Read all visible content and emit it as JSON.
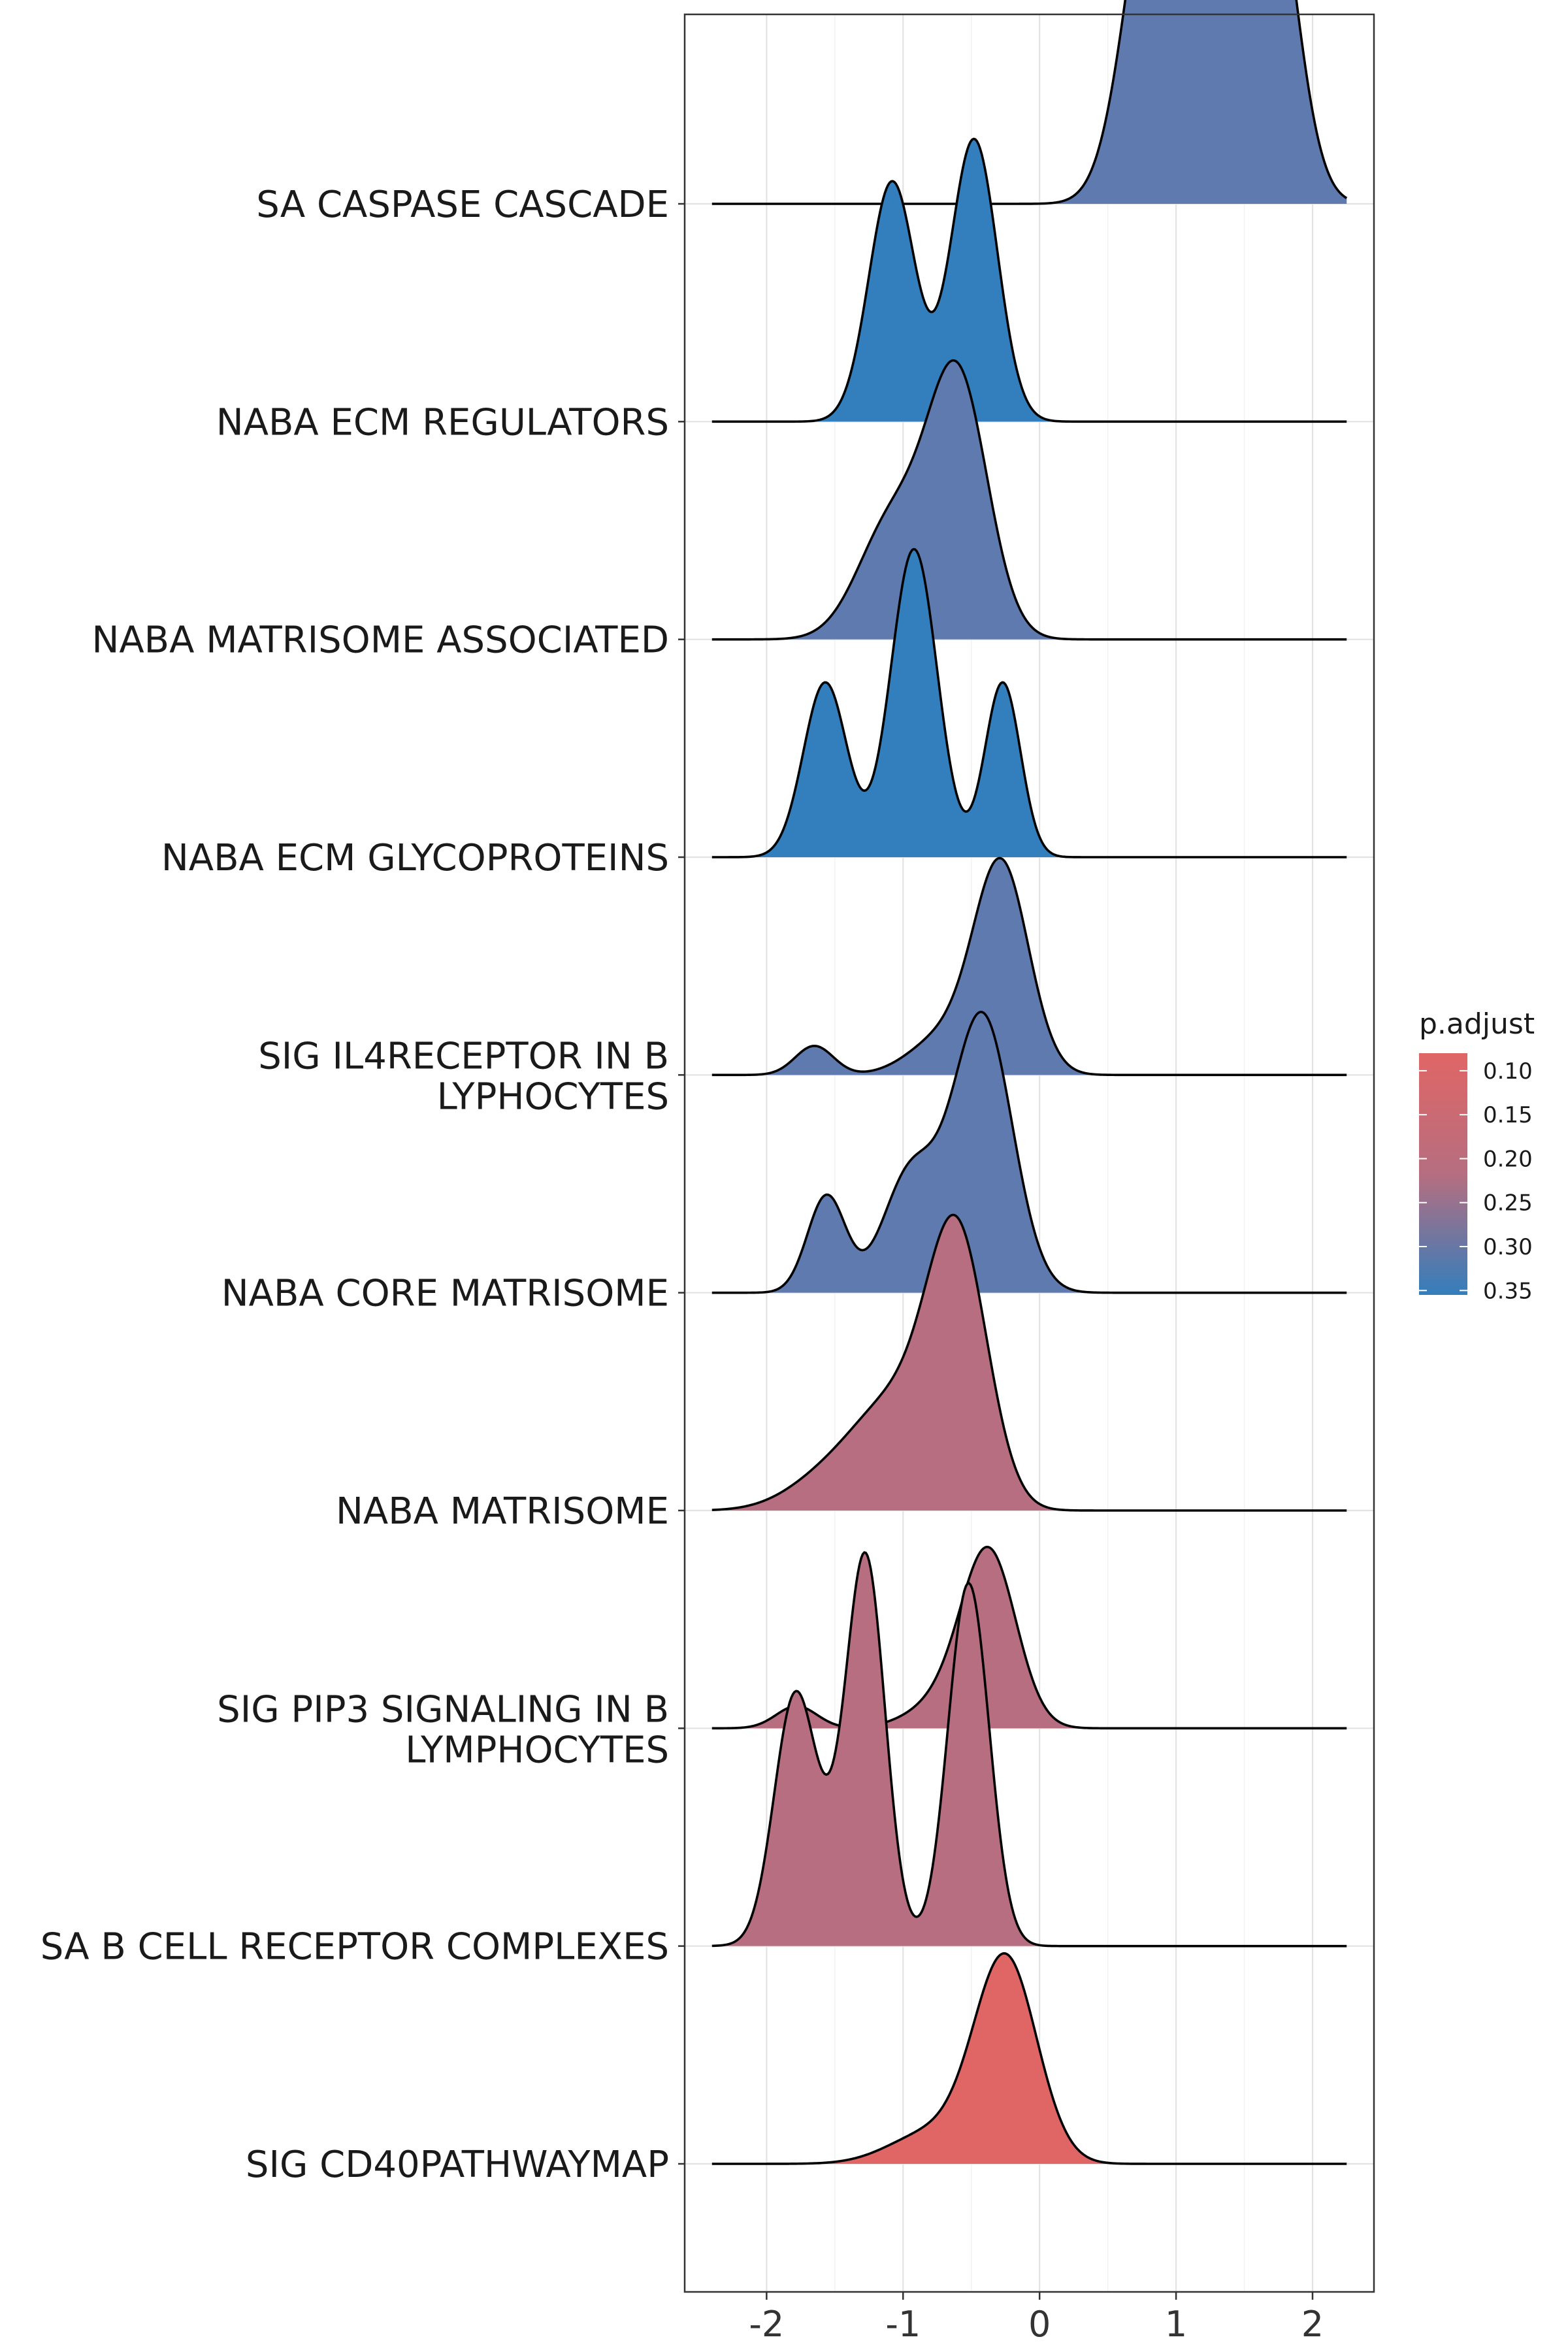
{
  "chart_data": {
    "type": "ridgeline",
    "title": "",
    "xlabel": "",
    "ylabel": "",
    "xlim": [
      -2.6,
      2.45
    ],
    "xticks": [
      -2,
      -1,
      0,
      1,
      2
    ],
    "xtick_labels": [
      "-2",
      "-1",
      "0",
      "1",
      "2"
    ],
    "grid": true,
    "ridge_scale_rows": 1.4,
    "categories": [
      "SIG CD40PATHWAYMAP",
      "SA B CELL RECEPTOR COMPLEXES",
      "SIG PIP3 SIGNALING IN B LYMPHOCYTES",
      "NABA MATRISOME",
      "NABA CORE MATRISOME",
      "SIG IL4RECEPTOR IN B LYPHOCYTES",
      "NABA ECM GLYCOPROTEINS",
      "NABA MATRISOME ASSOCIATED",
      "NABA ECM REGULATORS",
      "SA CASPASE CASCADE"
    ],
    "series": [
      {
        "name": "SIG CD40PATHWAYMAP",
        "label_lines": [
          "SIG CD40PATHWAYMAP"
        ],
        "p_adjust": 0.085,
        "color": "#e06666",
        "line_range": [
          -2.4,
          2.25
        ],
        "components": [
          {
            "mu": -0.25,
            "sd": 0.23,
            "w": 1.0
          },
          {
            "mu": -0.8,
            "sd": 0.3,
            "w": 0.15
          }
        ],
        "peak": 1.49
      },
      {
        "name": "SA B CELL RECEPTOR COMPLEXES",
        "label_lines": [
          "SA B CELL RECEPTOR COMPLEXES"
        ],
        "p_adjust": 0.19,
        "color": "#b66e80",
        "line_range": [
          -2.4,
          2.25
        ],
        "components": [
          {
            "mu": -1.8,
            "sd": 0.15,
            "w": 0.6
          },
          {
            "mu": -1.27,
            "sd": 0.14,
            "w": 0.95
          },
          {
            "mu": -0.52,
            "sd": 0.15,
            "w": 1.0
          },
          {
            "mu": -1.5,
            "sd": 0.25,
            "w": 0.2
          }
        ],
        "peak": 0.84
      },
      {
        "name": "SIG PIP3 SIGNALING IN B LYMPHOCYTES",
        "label_lines": [
          "SIG PIP3 SIGNALING IN B",
          "LYMPHOCYTES"
        ],
        "p_adjust": 0.19,
        "color": "#b66e80",
        "line_range": [
          -2.4,
          2.25
        ],
        "components": [
          {
            "mu": -0.37,
            "sd": 0.2,
            "w": 1.0
          },
          {
            "mu": -1.78,
            "sd": 0.15,
            "w": 0.13
          },
          {
            "mu": -0.7,
            "sd": 0.25,
            "w": 0.15
          }
        ],
        "peak": 1.79
      },
      {
        "name": "NABA MATRISOME",
        "label_lines": [
          "NABA MATRISOME"
        ],
        "p_adjust": 0.19,
        "color": "#b66e80",
        "line_range": [
          -2.4,
          2.25
        ],
        "components": [
          {
            "mu": -0.6,
            "sd": 0.22,
            "w": 1.0
          },
          {
            "mu": -1.05,
            "sd": 0.3,
            "w": 0.38
          },
          {
            "mu": -1.55,
            "sd": 0.3,
            "w": 0.12
          }
        ],
        "peak": 1.17
      },
      {
        "name": "NABA CORE MATRISOME",
        "label_lines": [
          "NABA CORE MATRISOME"
        ],
        "p_adjust": 0.31,
        "color": "#5f7aaf",
        "line_range": [
          -2.4,
          2.25
        ],
        "components": [
          {
            "mu": -0.42,
            "sd": 0.22,
            "w": 1.0
          },
          {
            "mu": -1.56,
            "sd": 0.14,
            "w": 0.35
          },
          {
            "mu": -0.95,
            "sd": 0.2,
            "w": 0.42
          }
        ],
        "peak": 1.1
      },
      {
        "name": "SIG IL4RECEPTOR IN B LYPHOCYTES",
        "label_lines": [
          "SIG IL4RECEPTOR IN B",
          "LYPHOCYTES"
        ],
        "p_adjust": 0.31,
        "color": "#5f7aaf",
        "line_range": [
          -2.4,
          2.25
        ],
        "components": [
          {
            "mu": -0.28,
            "sd": 0.2,
            "w": 1.0
          },
          {
            "mu": -1.65,
            "sd": 0.14,
            "w": 0.14
          },
          {
            "mu": -0.7,
            "sd": 0.25,
            "w": 0.18
          }
        ],
        "peak": 1.47
      },
      {
        "name": "NABA ECM GLYCOPROTEINS",
        "label_lines": [
          "NABA ECM GLYCOPROTEINS"
        ],
        "p_adjust": 0.35,
        "color": "#337ebc",
        "line_range": [
          -2.4,
          2.25
        ],
        "components": [
          {
            "mu": -1.57,
            "sd": 0.16,
            "w": 0.55
          },
          {
            "mu": -0.92,
            "sd": 0.17,
            "w": 0.97
          },
          {
            "mu": -0.27,
            "sd": 0.13,
            "w": 0.55
          }
        ],
        "peak": 0.96
      },
      {
        "name": "NABA MATRISOME ASSOCIATED",
        "label_lines": [
          "NABA MATRISOME ASSOCIATED"
        ],
        "p_adjust": 0.31,
        "color": "#5f7aaf",
        "line_range": [
          -2.4,
          2.25
        ],
        "components": [
          {
            "mu": -0.6,
            "sd": 0.22,
            "w": 1.0
          },
          {
            "mu": -1.08,
            "sd": 0.25,
            "w": 0.45
          }
        ],
        "peak": 1.18
      },
      {
        "name": "NABA ECM REGULATORS",
        "label_lines": [
          "NABA ECM REGULATORS"
        ],
        "p_adjust": 0.35,
        "color": "#337ebc",
        "line_range": [
          -2.4,
          2.25
        ],
        "components": [
          {
            "mu": -1.08,
            "sd": 0.17,
            "w": 0.85
          },
          {
            "mu": -0.48,
            "sd": 0.17,
            "w": 1.0
          }
        ],
        "peak": 1.08
      },
      {
        "name": "SA CASPASE CASCADE",
        "label_lines": [
          "SA CASPASE CASCADE"
        ],
        "p_adjust": 0.31,
        "color": "#5f7aaf",
        "line_range": [
          -2.4,
          2.25
        ],
        "components": [
          {
            "mu": 0.85,
            "sd": 0.22,
            "w": 0.95
          },
          {
            "mu": 1.25,
            "sd": 0.22,
            "w": 1.0
          },
          {
            "mu": 1.68,
            "sd": 0.2,
            "w": 0.95
          }
        ],
        "peak": 0.88
      }
    ],
    "legend": {
      "title": "p.adjust",
      "position": "right",
      "ticks": [
        0.1,
        0.15,
        0.2,
        0.25,
        0.3,
        0.35
      ],
      "tick_labels": [
        "0.10",
        "0.15",
        "0.20",
        "0.25",
        "0.30",
        "0.35"
      ],
      "range": [
        0.08,
        0.355
      ],
      "color_low_p": "#e06666",
      "color_high_p": "#337ebc"
    }
  }
}
